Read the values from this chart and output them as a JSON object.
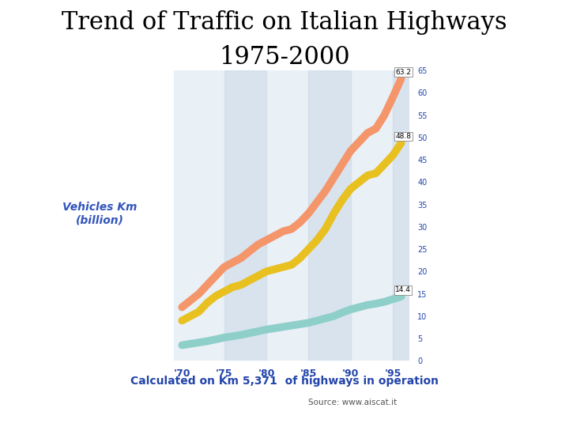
{
  "title_line1": "Trend of Traffic on Italian Highways",
  "title_line2": "1975-2000",
  "title_fontsize": 22,
  "title_font": "serif",
  "ylabel": "Vehicles Km\n(billion)",
  "ylabel_color": "#3355bb",
  "ylabel_fontsize": 10,
  "xlabel_ticks": [
    "'70",
    "'75",
    "'80",
    "'85",
    "'90",
    "'95"
  ],
  "xlabel_tick_positions": [
    1970,
    1975,
    1980,
    1985,
    1990,
    1995
  ],
  "xlabel_color": "#2244aa",
  "ytick_color": "#2244aa",
  "subtitle": "Calculated on Km 5,371  of highways in operation",
  "subtitle_color": "#2244aa",
  "subtitle_fontsize": 10,
  "source": "Source: www.aiscat.it",
  "source_fontsize": 7.5,
  "source_color": "#555555",
  "xmin": 1969,
  "xmax": 1997,
  "ymin": 0,
  "ymax": 65,
  "yticks": [
    0,
    5,
    10,
    15,
    20,
    25,
    30,
    35,
    40,
    45,
    50,
    55,
    60,
    65
  ],
  "line1_color": "#F4956A",
  "line1_linewidth": 7,
  "line1_x": [
    1970,
    1971,
    1972,
    1973,
    1974,
    1975,
    1976,
    1977,
    1978,
    1979,
    1980,
    1981,
    1982,
    1983,
    1984,
    1985,
    1986,
    1987,
    1988,
    1989,
    1990,
    1991,
    1992,
    1993,
    1994,
    1995,
    1996
  ],
  "line1_y": [
    12,
    13.5,
    15,
    17,
    19,
    21,
    22,
    23,
    24.5,
    26,
    27,
    28,
    29,
    29.5,
    31,
    33,
    35.5,
    38,
    41,
    44,
    47,
    49,
    51,
    52,
    55,
    59,
    63.2
  ],
  "line2_color": "#E8C020",
  "line2_linewidth": 7,
  "line2_x": [
    1970,
    1971,
    1972,
    1973,
    1974,
    1975,
    1976,
    1977,
    1978,
    1979,
    1980,
    1981,
    1982,
    1983,
    1984,
    1985,
    1986,
    1987,
    1988,
    1989,
    1990,
    1991,
    1992,
    1993,
    1994,
    1995,
    1996
  ],
  "line2_y": [
    9,
    10,
    11,
    13,
    14.5,
    15.5,
    16.5,
    17,
    18,
    19,
    20,
    20.5,
    21,
    21.5,
    23,
    25,
    27,
    29.5,
    33,
    36,
    38.5,
    40,
    41.5,
    42,
    44,
    46,
    48.8
  ],
  "line3_color": "#8ECFC9",
  "line3_linewidth": 7,
  "line3_x": [
    1970,
    1971,
    1972,
    1973,
    1974,
    1975,
    1976,
    1977,
    1978,
    1979,
    1980,
    1981,
    1982,
    1983,
    1984,
    1985,
    1986,
    1987,
    1988,
    1989,
    1990,
    1991,
    1992,
    1993,
    1994,
    1995,
    1996
  ],
  "line3_y": [
    3.5,
    3.8,
    4.1,
    4.4,
    4.8,
    5.2,
    5.5,
    5.8,
    6.2,
    6.6,
    7.0,
    7.3,
    7.6,
    7.9,
    8.2,
    8.5,
    9.0,
    9.5,
    10.0,
    10.8,
    11.5,
    12.0,
    12.5,
    12.8,
    13.2,
    13.8,
    14.4
  ],
  "ann1_text": "63.2",
  "ann1_x": 1995.8,
  "ann1_y": 63.2,
  "ann2_text": "48.8",
  "ann2_x": 1995.8,
  "ann2_y": 48.8,
  "ann3_text": "14.4",
  "ann3_x": 1995.8,
  "ann3_y": 14.4,
  "bg_color": "#ffffff",
  "chart_bg_color": "#d8e4f0",
  "chart_bg_alpha": 0.55,
  "band_color": "#c8d8e8",
  "band_alpha": 0.5
}
